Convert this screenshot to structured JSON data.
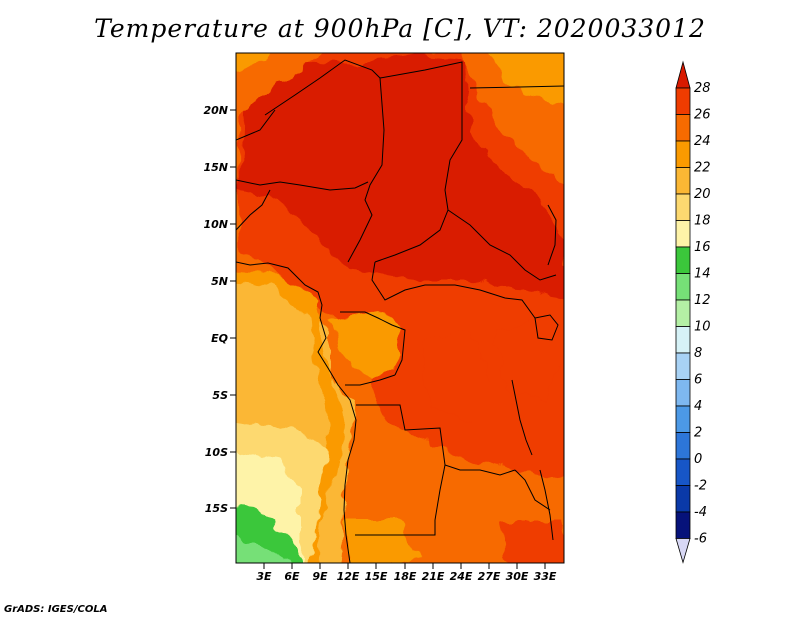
{
  "title": "Temperature at 900hPa [C], VT: 2020033012",
  "credit": "GrADS: IGES/COLA",
  "map": {
    "lat_ticks": [
      "20N",
      "15N",
      "10N",
      "5N",
      "EQ",
      "5S",
      "10S",
      "15S"
    ],
    "lon_ticks": [
      "3E",
      "6E",
      "9E",
      "12E",
      "15E",
      "18E",
      "21E",
      "24E",
      "27E",
      "30E",
      "33E"
    ]
  },
  "colorbar": {
    "labels": [
      "28",
      "26",
      "24",
      "22",
      "20",
      "18",
      "16",
      "14",
      "12",
      "10",
      "8",
      "6",
      "4",
      "2",
      "0",
      "-2",
      "-4",
      "-6"
    ],
    "colors": [
      "#d91a00",
      "#ef3c00",
      "#f76b00",
      "#fa9a00",
      "#fbb734",
      "#fdd970",
      "#fef3a8",
      "#3bc73b",
      "#76e077",
      "#b4f0a5",
      "#d6f2f7",
      "#a8d2f5",
      "#7eb8f0",
      "#4c99e6",
      "#2d76d9",
      "#1756c7",
      "#0a39a8",
      "#06127a",
      "#d8d8f5"
    ]
  }
}
